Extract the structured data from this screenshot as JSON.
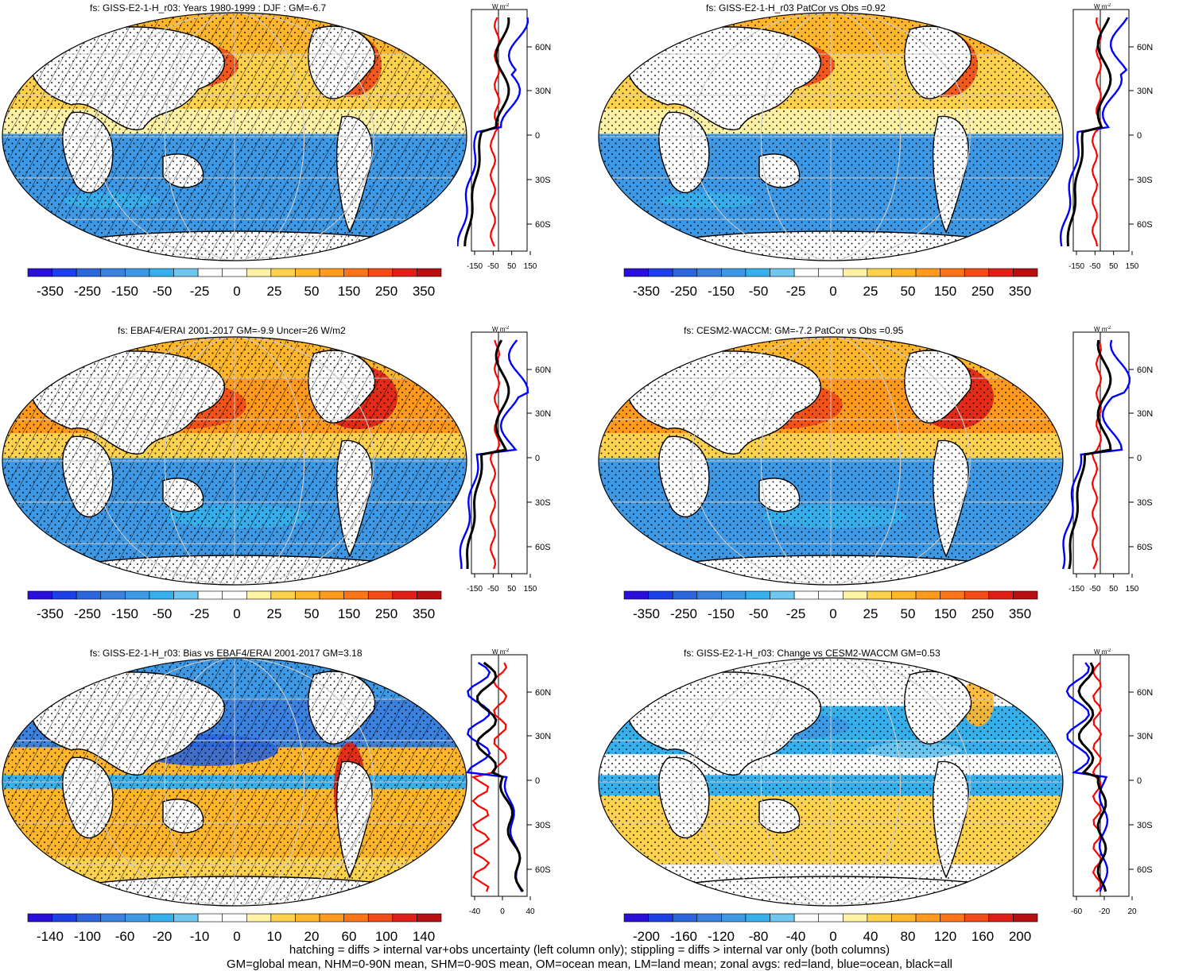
{
  "panels": [
    {
      "id": "p1",
      "title": "fs: GISS-E2-1-H_r03: Years 1980-1999 : DJF : GM=-6.7",
      "colorbar": [
        "-350",
        "-250",
        "-150",
        "-50",
        "-25",
        "0",
        "25",
        "50",
        "150",
        "250",
        "350"
      ],
      "zonal_xticks": [
        "-150",
        "-50",
        "50",
        "150"
      ],
      "hatching": true
    },
    {
      "id": "p2",
      "title": "fs: GISS-E2-1-H_r03 PatCor vs Obs =0.92",
      "colorbar": [
        "-350",
        "-250",
        "-150",
        "-50",
        "-25",
        "0",
        "25",
        "50",
        "150",
        "250",
        "350"
      ],
      "zonal_xticks": [
        "-150",
        "-50",
        "50",
        "150"
      ],
      "hatching": false
    },
    {
      "id": "p3",
      "title": "fs: EBAF4/ERAI 2001-2017 GM=-9.9 Uncer=26 W/m2",
      "colorbar": [
        "-350",
        "-250",
        "-150",
        "-50",
        "-25",
        "0",
        "25",
        "50",
        "150",
        "250",
        "350"
      ],
      "zonal_xticks": [
        "-150",
        "-50",
        "50",
        "150"
      ],
      "hatching": true
    },
    {
      "id": "p4",
      "title": "fs: CESM2-WACCM: GM=-7.2 PatCor vs Obs =0.95",
      "colorbar": [
        "-350",
        "-250",
        "-150",
        "-50",
        "-25",
        "0",
        "25",
        "50",
        "150",
        "250",
        "350"
      ],
      "zonal_xticks": [
        "-150",
        "-50",
        "50",
        "150"
      ],
      "hatching": false
    },
    {
      "id": "p5",
      "title": "fs: GISS-E2-1-H_r03: Bias vs EBAF4/ERAI 2001-2017 GM=3.18",
      "colorbar": [
        "-140",
        "-100",
        "-60",
        "-20",
        "-10",
        "0",
        "10",
        "20",
        "60",
        "100",
        "140"
      ],
      "zonal_xticks": [
        "-40",
        "0",
        "40"
      ],
      "hatching": true
    },
    {
      "id": "p6",
      "title": "fs: GISS-E2-1-H_r03: Change vs CESM2-WACCM GM=0.53",
      "colorbar": [
        "-200",
        "-160",
        "-120",
        "-80",
        "-40",
        "0",
        "40",
        "80",
        "120",
        "160",
        "200"
      ],
      "zonal_xticks": [
        "-60",
        "-20",
        "20"
      ],
      "hatching": false
    }
  ],
  "zonal_units": "W m",
  "zonal_units_sup": "-2",
  "lat_labels": [
    "60N",
    "30N",
    "0",
    "30S",
    "60S"
  ],
  "colors": {
    "scale": [
      "#2a0fd9",
      "#1f3fe6",
      "#2c66dd",
      "#3b82e0",
      "#3d99e6",
      "#35b0ec",
      "#6fc6ee",
      "#ffffff",
      "#ffffff",
      "#fff2a5",
      "#ffd24d",
      "#ffb62b",
      "#ff9a1c",
      "#fb7418",
      "#f24b18",
      "#e01f18",
      "#b80f10"
    ],
    "land": "#000000",
    "ocean": "#0000ff",
    "all_lines": "#000000",
    "red_line": "#ff0000"
  },
  "footer": {
    "line1": "hatching = diffs > internal var+obs uncertainty (left column only); stippling = diffs > internal var only (both columns)",
    "line2": "GM=global mean, NHM=0-90N mean, SHM=0-90S mean, OM=ocean mean, LM=land mean; zonal avgs: red=land, blue=ocean, black=all"
  }
}
